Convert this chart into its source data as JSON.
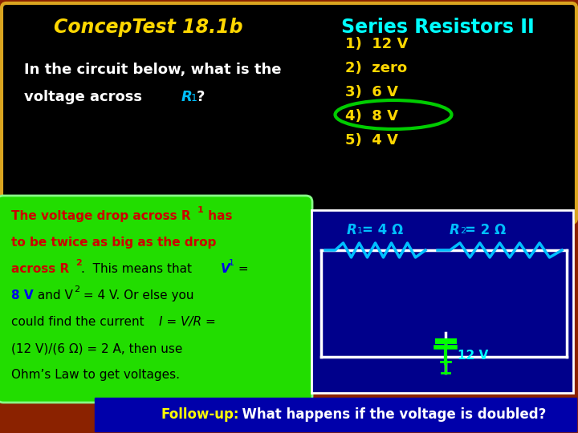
{
  "bg_color": "#8B2200",
  "top_panel_bg": "#000000",
  "top_panel_border": "#DAA520",
  "title_left": "ConcepTest 18.1b",
  "title_left_color": "#FFD700",
  "title_right": "Series Resistors II",
  "title_right_color": "#00FFFF",
  "question_line1": "In the circuit below, what is the",
  "question_line2": "voltage across ",
  "question_r1_color": "#00BFFF",
  "question_color": "#FFFFFF",
  "answers": [
    "1)  12 V",
    "2)  zero",
    "3)  6 V",
    "4)  8 V",
    "5)  4 V"
  ],
  "answer_color": "#FFD700",
  "answer_circle_color": "#00CC00",
  "green_panel_bg": "#22DD00",
  "resistor_color": "#00BFFF",
  "battery_color": "#00FF00",
  "battery_text_color": "#00FFFF",
  "circuit_bg": "#00008B",
  "circuit_border": "#FFFFFF",
  "followup_bg": "#0000AA",
  "followup_bold": "Follow-up:",
  "followup_rest": "  What happens if the voltage is doubled?",
  "followup_color": "#FFFFFF",
  "followup_bold_color": "#FFFF00"
}
